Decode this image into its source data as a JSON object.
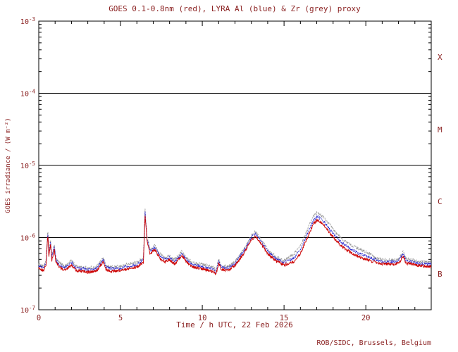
{
  "page": {
    "background": "#ffffff"
  },
  "footer": {
    "credit": "ROB/SIDC, Brussels, Belgium"
  },
  "colors": {
    "text": "#8b2222",
    "frame": "#000000",
    "goes_red": "#cc0000",
    "lyra_al_blue": "#2222cc",
    "lyra_zr_grey": "#999999"
  },
  "chart_data": {
    "type": "line",
    "title": "GOES 0.1-0.8nm (red), LYRA Al (blue) & Zr (grey) proxy",
    "xlabel": "Time / h UTC, 22 Feb 2026",
    "ylabel": "GOES irradiance / (W m⁻²)",
    "xlim": [
      0,
      24
    ],
    "ylim": [
      1e-07,
      0.001
    ],
    "yscale": "log",
    "grid": "off",
    "legend": "in-title",
    "x_ticks": [
      0,
      5,
      10,
      15,
      20
    ],
    "x_minor_tick_step": 1,
    "y_tick_exponents": [
      -3,
      -4,
      -5,
      -6,
      -7
    ],
    "flare_class_labels": [
      "X",
      "M",
      "C",
      "B"
    ],
    "class_boundaries": [
      0.0001,
      1e-05,
      1e-06
    ],
    "t": [
      0,
      0.3,
      0.45,
      0.55,
      0.62,
      0.72,
      0.8,
      0.95,
      1.05,
      1.3,
      1.6,
      2,
      2.3,
      3,
      3.5,
      3.95,
      4.1,
      4.5,
      5,
      5.5,
      6,
      6.4,
      6.5,
      6.62,
      6.8,
      7.1,
      7.4,
      7.7,
      8,
      8.3,
      8.75,
      9,
      9.4,
      10,
      10.6,
      10.85,
      11,
      11.15,
      11.6,
      12,
      12.5,
      13,
      13.25,
      13.6,
      14,
      14.5,
      15,
      15.6,
      16,
      16.5,
      16.8,
      17.05,
      17.35,
      17.7,
      18.1,
      18.6,
      19.1,
      19.6,
      20.1,
      20.6,
      21.1,
      21.6,
      22,
      22.3,
      22.45,
      23,
      23.5,
      24
    ],
    "series": [
      {
        "id": "goes-red",
        "name": "GOES 0.1-0.8nm",
        "color": "#cc0000",
        "dash": "",
        "values": [
          3.8e-07,
          3.5e-07,
          4.2e-07,
          1.1e-06,
          5.5e-07,
          8e-07,
          4.8e-07,
          7e-07,
          4.5e-07,
          3.8e-07,
          3.5e-07,
          4.2e-07,
          3.5e-07,
          3.3e-07,
          3.4e-07,
          4.6e-07,
          3.6e-07,
          3.4e-07,
          3.5e-07,
          3.7e-07,
          3.9e-07,
          4.5e-07,
          2.1e-06,
          9e-07,
          6e-07,
          6.8e-07,
          5.2e-07,
          4.6e-07,
          4.9e-07,
          4.3e-07,
          5.6e-07,
          4.7e-07,
          3.9e-07,
          3.7e-07,
          3.4e-07,
          3.1e-07,
          4.4e-07,
          3.6e-07,
          3.5e-07,
          4.1e-07,
          5.8e-07,
          9.2e-07,
          1.05e-06,
          8.2e-07,
          6e-07,
          4.7e-07,
          4.2e-07,
          4.6e-07,
          6e-07,
          1.1e-06,
          1.55e-06,
          1.75e-06,
          1.55e-06,
          1.25e-06,
          9.5e-07,
          7.3e-07,
          6.2e-07,
          5.4e-07,
          4.9e-07,
          4.5e-07,
          4.3e-07,
          4.3e-07,
          4.4e-07,
          5.6e-07,
          4.4e-07,
          4.2e-07,
          4e-07,
          4e-07
        ]
      },
      {
        "id": "lyra-al",
        "name": "LYRA Al proxy",
        "color": "#2222cc",
        "dash": "1.5,1",
        "values": [
          4.1e-07,
          3.8e-07,
          4.5e-07,
          1.19e-06,
          5.9e-07,
          8.6e-07,
          5.2e-07,
          7.6e-07,
          4.9e-07,
          4.1e-07,
          3.8e-07,
          4.5e-07,
          3.8e-07,
          3.6e-07,
          3.7e-07,
          5e-07,
          3.9e-07,
          3.7e-07,
          3.8e-07,
          4e-07,
          4.2e-07,
          4.9e-07,
          2.27e-06,
          9.7e-07,
          6.5e-07,
          7.3e-07,
          5.6e-07,
          5e-07,
          5.3e-07,
          4.6e-07,
          6e-07,
          5.1e-07,
          4.2e-07,
          4e-07,
          3.7e-07,
          3.3e-07,
          4.8e-07,
          3.9e-07,
          3.8e-07,
          4.4e-07,
          6.3e-07,
          9.9e-07,
          1.13e-06,
          8.9e-07,
          6.5e-07,
          5.1e-07,
          4.5e-07,
          5.2e-07,
          6.7e-07,
          1.23e-06,
          1.74e-06,
          1.96e-06,
          1.74e-06,
          1.4e-06,
          1.06e-06,
          8.2e-07,
          6.9e-07,
          6e-07,
          5.5e-07,
          4.9e-07,
          4.6e-07,
          4.6e-07,
          4.8e-07,
          6e-07,
          4.8e-07,
          4.5e-07,
          4.3e-07,
          4.3e-07
        ]
      },
      {
        "id": "lyra-zr",
        "name": "LYRA Zr proxy",
        "color": "#999999",
        "dash": "2.5,1.5",
        "values": [
          4.4e-07,
          4e-07,
          4.8e-07,
          1.27e-06,
          6.3e-07,
          9.2e-07,
          5.5e-07,
          8.1e-07,
          5.2e-07,
          4.4e-07,
          4e-07,
          4.8e-07,
          4e-07,
          3.8e-07,
          3.9e-07,
          5.3e-07,
          4.1e-07,
          3.9e-07,
          4e-07,
          4.3e-07,
          4.5e-07,
          5.2e-07,
          2.42e-06,
          1.04e-06,
          6.9e-07,
          7.8e-07,
          6e-07,
          5.3e-07,
          5.6e-07,
          4.9e-07,
          6.4e-07,
          5.4e-07,
          4.5e-07,
          4.3e-07,
          3.9e-07,
          3.6e-07,
          5.1e-07,
          4.1e-07,
          4e-07,
          4.7e-07,
          6.7e-07,
          1.06e-06,
          1.21e-06,
          9.4e-07,
          6.9e-07,
          5.4e-07,
          4.8e-07,
          5.9e-07,
          7.7e-07,
          1.41e-06,
          1.98e-06,
          2.24e-06,
          1.98e-06,
          1.6e-06,
          1.22e-06,
          9.3e-07,
          7.9e-07,
          6.9e-07,
          6.3e-07,
          5.2e-07,
          4.9e-07,
          4.9e-07,
          5.1e-07,
          6.4e-07,
          5.1e-07,
          4.8e-07,
          4.6e-07,
          4.6e-07
        ]
      }
    ]
  }
}
